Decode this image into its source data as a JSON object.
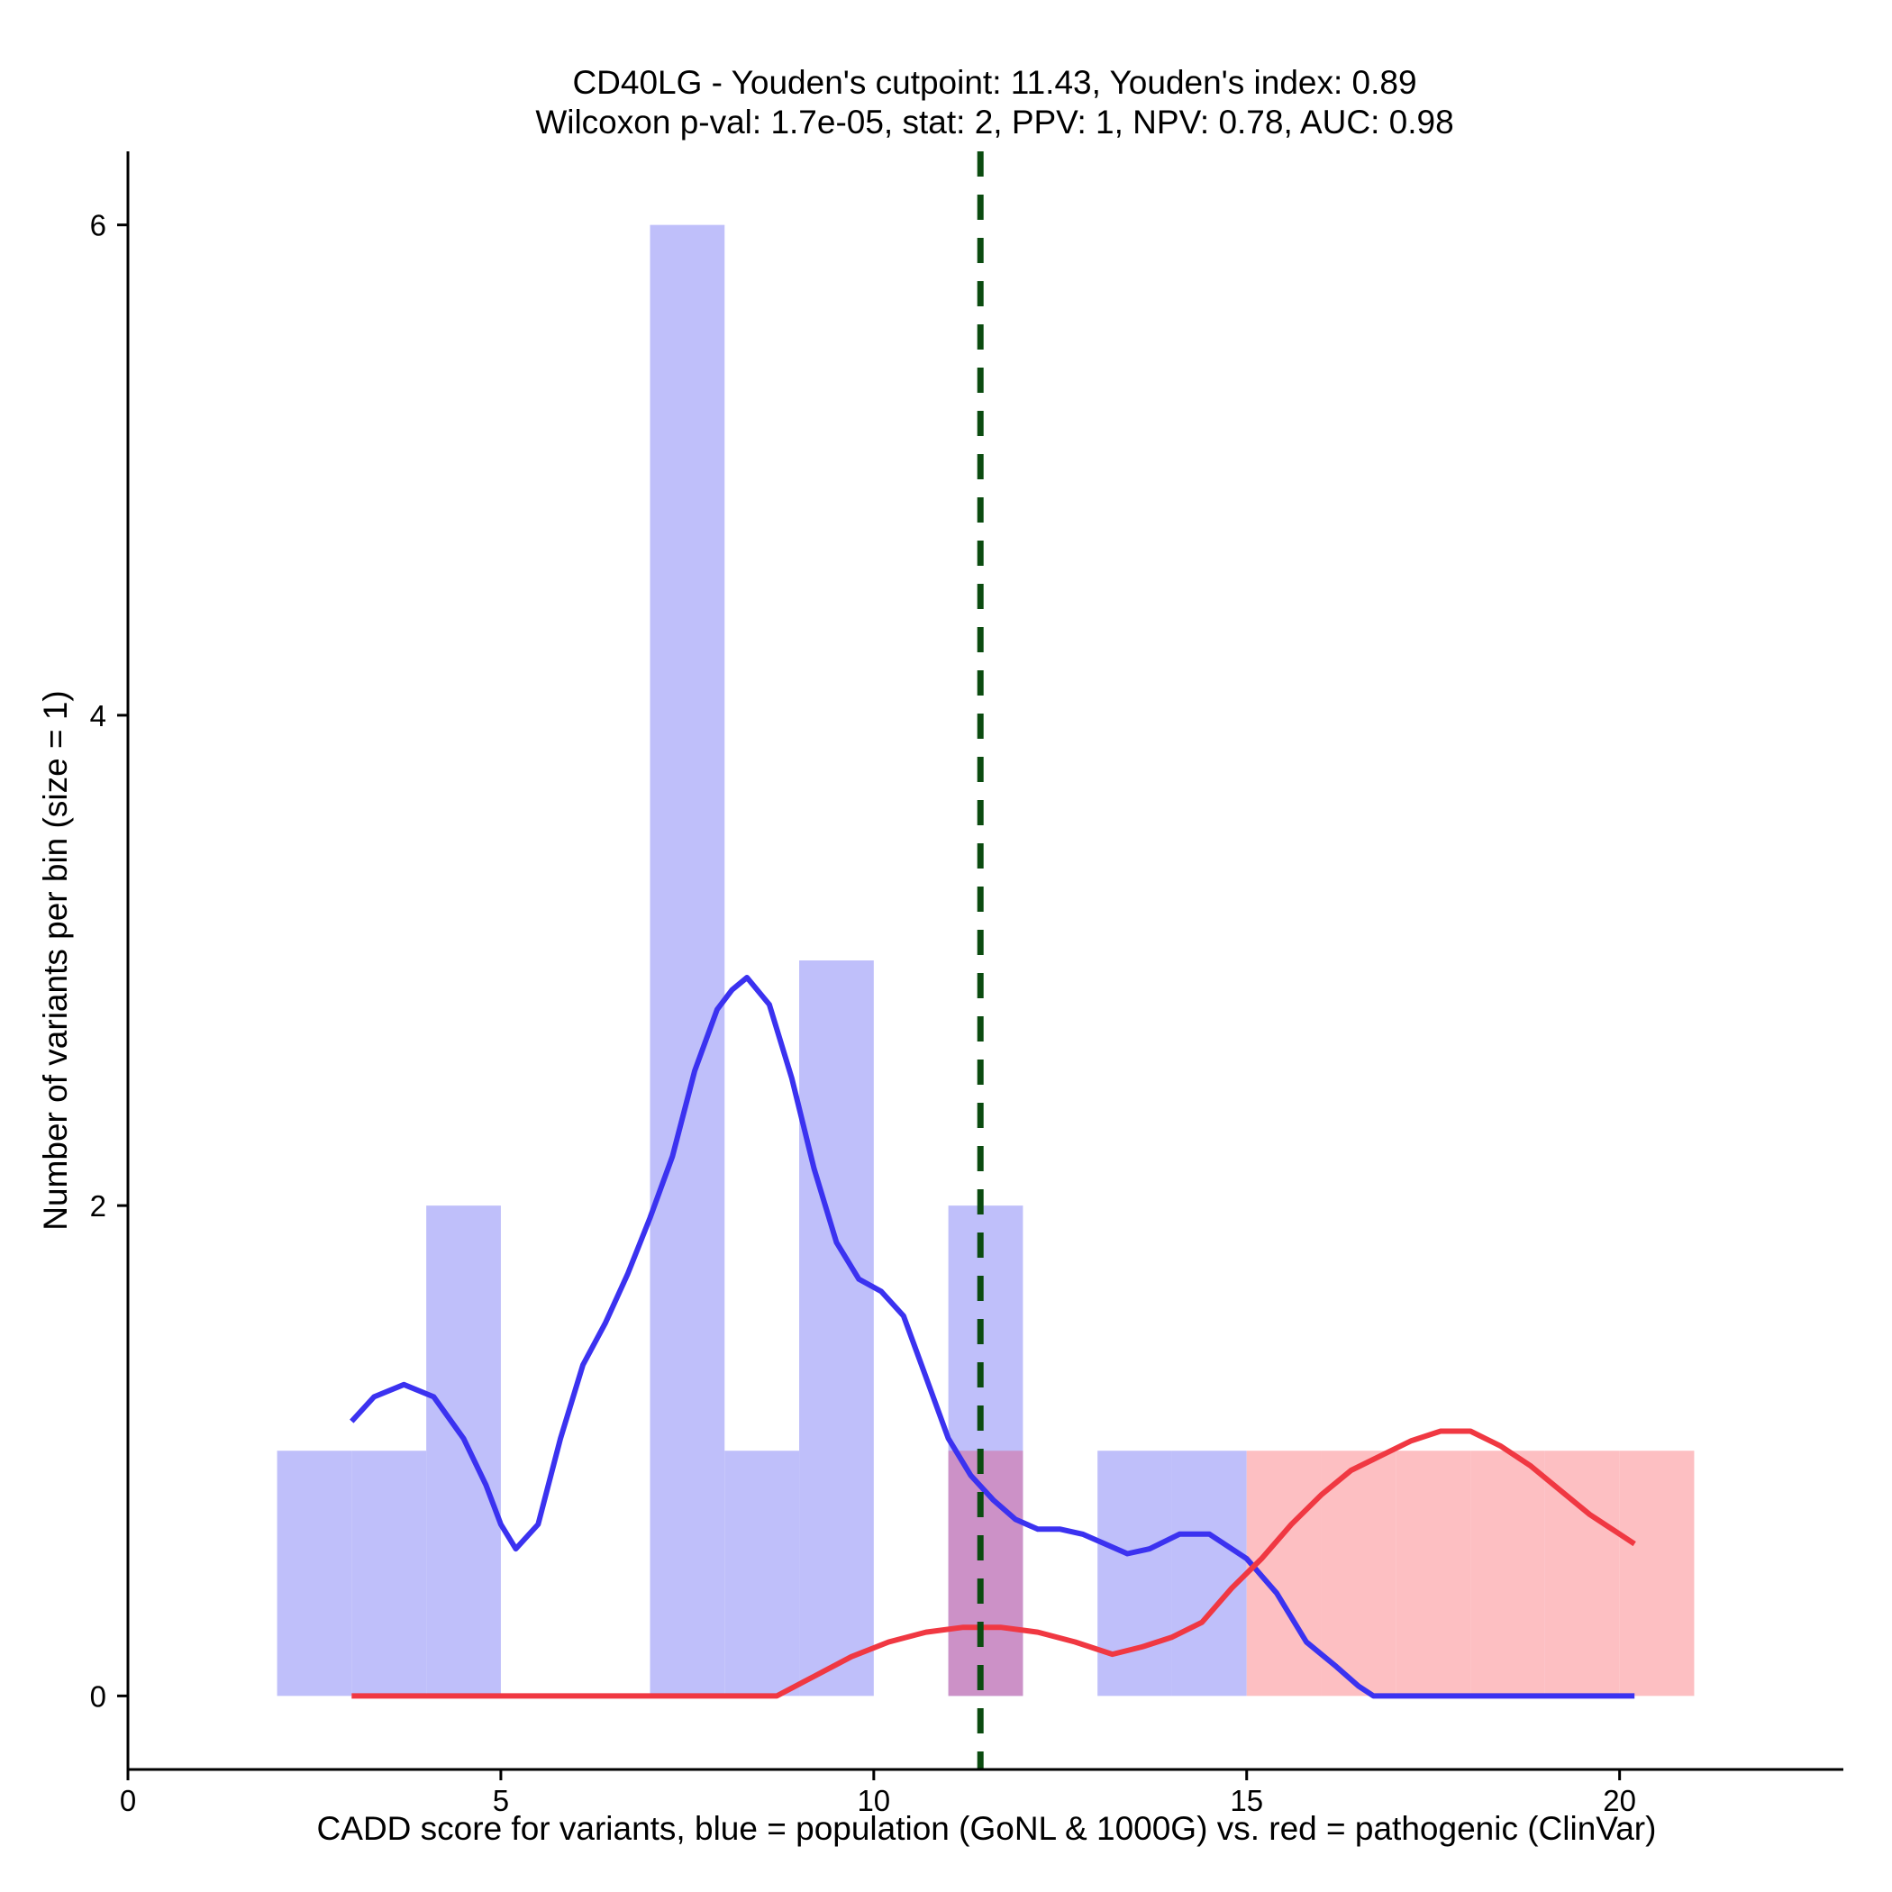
{
  "chart_data": {
    "type": "bar",
    "title": "CD40LG - Youden's cutpoint: 11.43, Youden's index: 0.89",
    "subtitle": "Wilcoxon p-val: 1.7e-05, stat: 2, PPV: 1, NPV: 0.78, AUC: 0.98",
    "xlabel": "CADD score for variants, blue = population (GoNL & 1000G) vs. red = pathogenic (ClinVar)",
    "ylabel": "Number of variants per bin (size = 1)",
    "xlim": [
      0,
      23
    ],
    "ylim": [
      -0.3,
      6.3
    ],
    "x_ticks": [
      0,
      5,
      10,
      15,
      20
    ],
    "y_ticks": [
      0,
      2,
      4,
      6
    ],
    "bin_size": 1,
    "cutpoint": 11.43,
    "colors": {
      "population": "#bfbffa",
      "pathogenic": "#fdbfc2",
      "overlap": "#cc91c7",
      "population_line": "#3b32f0",
      "pathogenic_line": "#f03842",
      "cutpoint_line": "#0b4b10"
    },
    "series": [
      {
        "name": "population",
        "bins": [
          {
            "x0": 2,
            "x1": 3,
            "count": 1
          },
          {
            "x0": 3,
            "x1": 4,
            "count": 1
          },
          {
            "x0": 4,
            "x1": 5,
            "count": 2
          },
          {
            "x0": 7,
            "x1": 8,
            "count": 6
          },
          {
            "x0": 8,
            "x1": 9,
            "count": 1
          },
          {
            "x0": 9,
            "x1": 10,
            "count": 3
          },
          {
            "x0": 11,
            "x1": 12,
            "count": 2
          },
          {
            "x0": 13,
            "x1": 14,
            "count": 1
          },
          {
            "x0": 14,
            "x1": 15,
            "count": 1
          }
        ],
        "density": [
          [
            3.0,
            1.12
          ],
          [
            3.3,
            1.22
          ],
          [
            3.7,
            1.27
          ],
          [
            4.1,
            1.22
          ],
          [
            4.5,
            1.05
          ],
          [
            4.8,
            0.86
          ],
          [
            5.0,
            0.7
          ],
          [
            5.2,
            0.6
          ],
          [
            5.5,
            0.7
          ],
          [
            5.8,
            1.05
          ],
          [
            6.1,
            1.35
          ],
          [
            6.4,
            1.52
          ],
          [
            6.7,
            1.72
          ],
          [
            7.0,
            1.95
          ],
          [
            7.3,
            2.2
          ],
          [
            7.6,
            2.55
          ],
          [
            7.9,
            2.8
          ],
          [
            8.1,
            2.88
          ],
          [
            8.3,
            2.93
          ],
          [
            8.6,
            2.82
          ],
          [
            8.9,
            2.52
          ],
          [
            9.2,
            2.15
          ],
          [
            9.5,
            1.85
          ],
          [
            9.8,
            1.7
          ],
          [
            10.1,
            1.65
          ],
          [
            10.4,
            1.55
          ],
          [
            10.7,
            1.3
          ],
          [
            11.0,
            1.05
          ],
          [
            11.3,
            0.9
          ],
          [
            11.6,
            0.8
          ],
          [
            11.9,
            0.72
          ],
          [
            12.2,
            0.68
          ],
          [
            12.5,
            0.68
          ],
          [
            12.8,
            0.66
          ],
          [
            13.1,
            0.62
          ],
          [
            13.4,
            0.58
          ],
          [
            13.7,
            0.6
          ],
          [
            14.1,
            0.66
          ],
          [
            14.5,
            0.66
          ],
          [
            15.0,
            0.56
          ],
          [
            15.4,
            0.42
          ],
          [
            15.8,
            0.22
          ],
          [
            16.2,
            0.12
          ],
          [
            16.5,
            0.04
          ],
          [
            16.7,
            0.0
          ],
          [
            18.0,
            0.0
          ],
          [
            20.2,
            0.0
          ]
        ]
      },
      {
        "name": "pathogenic",
        "bins": [
          {
            "x0": 11,
            "x1": 12,
            "count": 1
          },
          {
            "x0": 15,
            "x1": 16,
            "count": 1
          },
          {
            "x0": 16,
            "x1": 17,
            "count": 1
          },
          {
            "x0": 17,
            "x1": 18,
            "count": 1
          },
          {
            "x0": 18,
            "x1": 19,
            "count": 1
          },
          {
            "x0": 19,
            "x1": 20,
            "count": 1
          },
          {
            "x0": 20,
            "x1": 21,
            "count": 1
          }
        ],
        "density": [
          [
            3.0,
            0.0
          ],
          [
            8.7,
            0.0
          ],
          [
            9.2,
            0.08
          ],
          [
            9.7,
            0.16
          ],
          [
            10.2,
            0.22
          ],
          [
            10.7,
            0.26
          ],
          [
            11.2,
            0.28
          ],
          [
            11.7,
            0.28
          ],
          [
            12.2,
            0.26
          ],
          [
            12.7,
            0.22
          ],
          [
            13.2,
            0.17
          ],
          [
            13.6,
            0.2
          ],
          [
            14.0,
            0.24
          ],
          [
            14.4,
            0.3
          ],
          [
            14.8,
            0.44
          ],
          [
            15.2,
            0.56
          ],
          [
            15.6,
            0.7
          ],
          [
            16.0,
            0.82
          ],
          [
            16.4,
            0.92
          ],
          [
            16.8,
            0.98
          ],
          [
            17.2,
            1.04
          ],
          [
            17.6,
            1.08
          ],
          [
            18.0,
            1.08
          ],
          [
            18.4,
            1.02
          ],
          [
            18.8,
            0.94
          ],
          [
            19.2,
            0.84
          ],
          [
            19.6,
            0.74
          ],
          [
            20.0,
            0.66
          ],
          [
            20.2,
            0.62
          ]
        ]
      }
    ]
  }
}
